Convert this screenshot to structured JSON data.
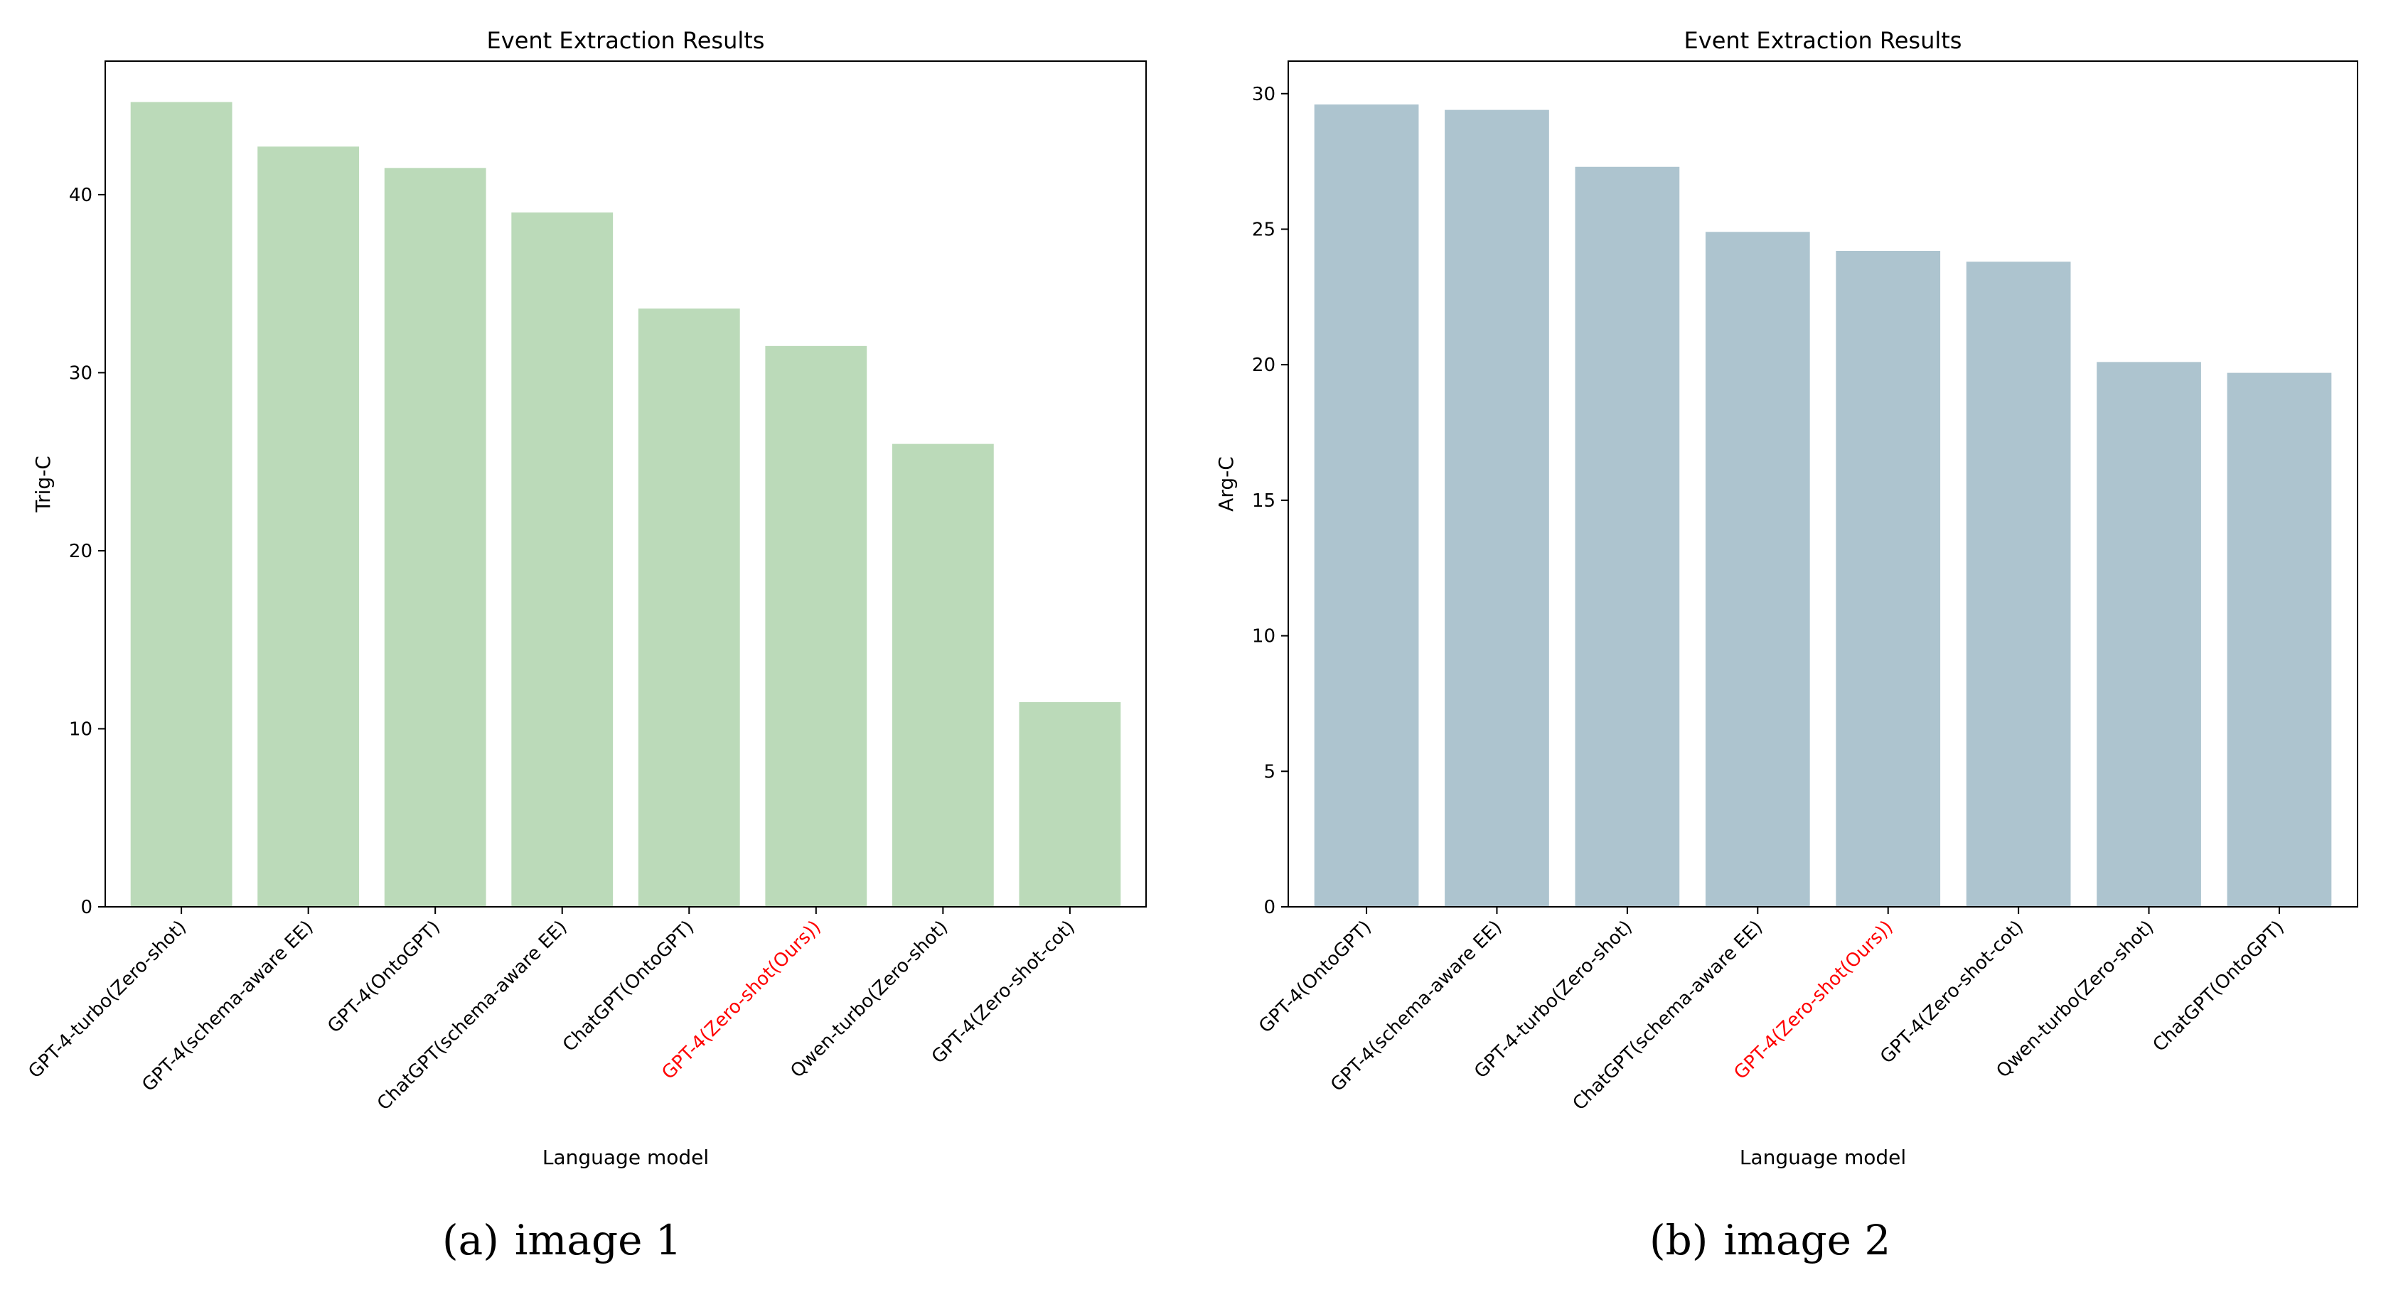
{
  "chart_data": [
    {
      "type": "bar",
      "title": "Event Extraction Results",
      "xlabel": "Language model",
      "ylabel": "Trig-C",
      "ylim": [
        0,
        47.5
      ],
      "yticks": [
        0,
        10,
        20,
        30,
        40
      ],
      "bar_color": "#bbdab9",
      "highlight_color": "#ff0000",
      "highlight_category": "GPT-4(Zero-shot(Ours))",
      "categories": [
        "GPT-4-turbo(Zero-shot)",
        "GPT-4(schema-aware EE)",
        "GPT-4(OntoGPT)",
        "ChatGPT(schema-aware EE)",
        "ChatGPT(OntoGPT)",
        "GPT-4(Zero-shot(Ours))",
        "Qwen-turbo(Zero-shot)",
        "GPT-4(Zero-shot-cot)"
      ],
      "values": [
        45.2,
        42.7,
        41.5,
        39.0,
        33.6,
        31.5,
        26.0,
        11.5
      ],
      "grid": false
    },
    {
      "type": "bar",
      "title": "Event Extraction Results",
      "xlabel": "Language model",
      "ylabel": "Arg-C",
      "ylim": [
        0,
        31.2
      ],
      "yticks": [
        0,
        5,
        10,
        15,
        20,
        25,
        30
      ],
      "bar_color": "#adc4cf",
      "highlight_color": "#ff0000",
      "highlight_category": "GPT-4(Zero-shot(Ours))",
      "categories": [
        "GPT-4(OntoGPT)",
        "GPT-4(schema-aware EE)",
        "GPT-4-turbo(Zero-shot)",
        "ChatGPT(schema-aware EE)",
        "GPT-4(Zero-shot(Ours))",
        "GPT-4(Zero-shot-cot)",
        "Qwen-turbo(Zero-shot)",
        "ChatGPT(OntoGPT)"
      ],
      "values": [
        29.6,
        29.4,
        27.3,
        24.9,
        24.2,
        23.8,
        20.1,
        19.7
      ],
      "grid": false
    }
  ],
  "captions": [
    {
      "label": "(a)",
      "text": "image 1"
    },
    {
      "label": "(b)",
      "text": "image 2"
    }
  ]
}
